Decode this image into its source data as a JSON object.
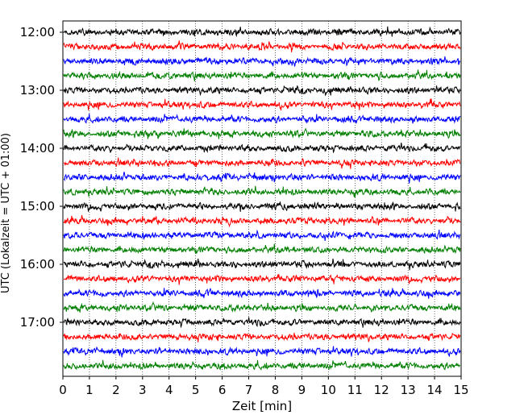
{
  "chart_data": {
    "type": "line",
    "title": "",
    "xlabel": "Zeit  [min]",
    "ylabel": "UTC (Lokalzeit = UTC + 01:00)",
    "xlim": [
      0,
      15
    ],
    "x_ticks": [
      "0",
      "1",
      "2",
      "3",
      "4",
      "5",
      "6",
      "7",
      "8",
      "9",
      "10",
      "11",
      "12",
      "13",
      "14",
      "15"
    ],
    "y_tick_labels": [
      "12:00",
      "13:00",
      "14:00",
      "15:00",
      "16:00",
      "17:00"
    ],
    "trace_interval_minutes": 15,
    "trace_count": 24,
    "start_time": "12:00",
    "trace_colors": [
      "#000000",
      "#ff0000",
      "#0000ff",
      "#007f00"
    ],
    "grid": "vertical dotted",
    "legend": "none"
  }
}
